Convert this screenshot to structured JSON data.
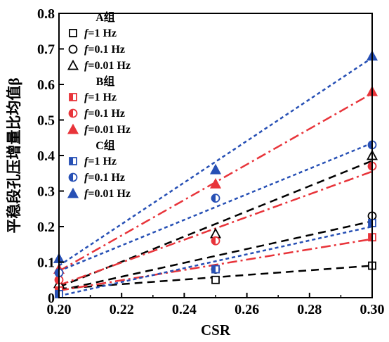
{
  "chart_data": {
    "type": "scatter",
    "xlabel": "CSR",
    "ylabel": "平稳段孔压增量比均值β",
    "xlim": [
      0.2,
      0.3
    ],
    "ylim": [
      0,
      0.8
    ],
    "x_ticks": [
      "0.20",
      "0.22",
      "0.24",
      "0.26",
      "0.28",
      "0.30"
    ],
    "y_ticks": [
      "0",
      "0.1",
      "0.2",
      "0.3",
      "0.4",
      "0.5",
      "0.6",
      "0.7",
      "0.8"
    ],
    "groups": [
      {
        "title": "A组",
        "color": "#000000",
        "line_style": "dash",
        "series": [
          {
            "name": "f=1 Hz",
            "f_value": "1 Hz",
            "marker": "square",
            "x": [
              0.2,
              0.25,
              0.3
            ],
            "y": [
              0.02,
              0.05,
              0.09
            ],
            "fit": [
              [
                0.2,
                0.025
              ],
              [
                0.3,
                0.09
              ]
            ]
          },
          {
            "name": "f=0.1 Hz",
            "f_value": "0.1 Hz",
            "marker": "circle",
            "x": [
              0.2,
              0.25,
              0.3
            ],
            "y": [
              0.03,
              0.08,
              0.23
            ],
            "fit": [
              [
                0.2,
                0.02
              ],
              [
                0.3,
                0.215
              ]
            ]
          },
          {
            "name": "f=0.01 Hz",
            "f_value": "0.01 Hz",
            "marker": "triangle",
            "x": [
              0.2,
              0.25,
              0.3
            ],
            "y": [
              0.04,
              0.18,
              0.4
            ],
            "fit": [
              [
                0.2,
                0.03
              ],
              [
                0.3,
                0.385
              ]
            ]
          }
        ]
      },
      {
        "title": "B组",
        "color": "#e8343a",
        "line_style": "dashdot",
        "series": [
          {
            "name": "f=1 Hz",
            "f_value": "1 Hz",
            "marker": "square",
            "x": [
              0.2,
              0.25,
              0.3
            ],
            "y": [
              0.02,
              0.08,
              0.17
            ],
            "fit": [
              [
                0.2,
                0.02
              ],
              [
                0.3,
                0.165
              ]
            ]
          },
          {
            "name": "f=0.1 Hz",
            "f_value": "0.1 Hz",
            "marker": "circle",
            "x": [
              0.2,
              0.25,
              0.3
            ],
            "y": [
              0.05,
              0.16,
              0.37
            ],
            "fit": [
              [
                0.2,
                0.035
              ],
              [
                0.3,
                0.355
              ]
            ]
          },
          {
            "name": "f=0.01 Hz",
            "f_value": "0.01 Hz",
            "marker": "triangle",
            "x": [
              0.2,
              0.25,
              0.3
            ],
            "y": [
              0.08,
              0.32,
              0.58
            ],
            "fit": [
              [
                0.2,
                0.075
              ],
              [
                0.3,
                0.575
              ]
            ]
          }
        ]
      },
      {
        "title": "C组",
        "color": "#2750b5",
        "line_style": "dot",
        "series": [
          {
            "name": "f=1 Hz",
            "f_value": "1 Hz",
            "marker": "square",
            "x": [
              0.2,
              0.25,
              0.3
            ],
            "y": [
              0.01,
              0.08,
              0.21
            ],
            "fit": [
              [
                0.2,
                0.005
              ],
              [
                0.3,
                0.2
              ]
            ]
          },
          {
            "name": "f=0.1 Hz",
            "f_value": "0.1 Hz",
            "marker": "circle",
            "x": [
              0.2,
              0.25,
              0.3
            ],
            "y": [
              0.07,
              0.28,
              0.43
            ],
            "fit": [
              [
                0.2,
                0.075
              ],
              [
                0.3,
                0.435
              ]
            ]
          },
          {
            "name": "f=0.01 Hz",
            "f_value": "0.01 Hz",
            "marker": "triangle",
            "x": [
              0.2,
              0.25,
              0.3
            ],
            "y": [
              0.11,
              0.36,
              0.68
            ],
            "fit": [
              [
                0.2,
                0.09
              ],
              [
                0.3,
                0.675
              ]
            ]
          }
        ]
      }
    ],
    "legend_position": "top-left",
    "grid": false
  }
}
